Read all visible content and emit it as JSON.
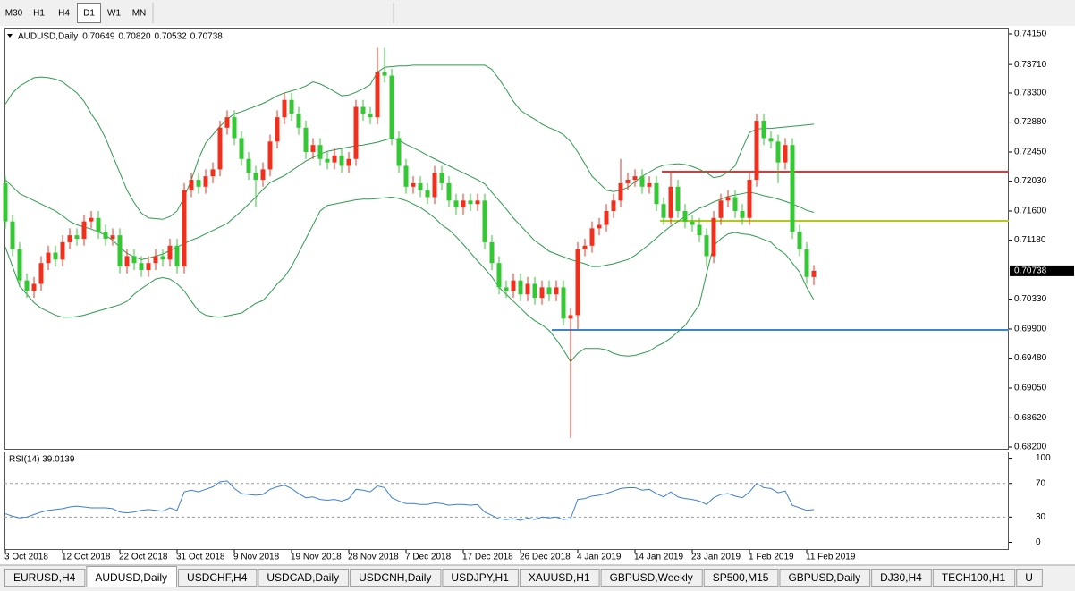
{
  "toolbar": {
    "timeframes": [
      "M30",
      "H1",
      "H4",
      "D1",
      "W1",
      "MN"
    ],
    "active": "D1"
  },
  "chart_data": [
    {
      "type": "candlestick",
      "title": "AUDUSD,Daily",
      "header_values": [
        "0.70649",
        "0.70820",
        "0.70532",
        "0.70738"
      ],
      "categories": [
        "3 Oct 2018",
        null,
        null,
        null,
        null,
        null,
        null,
        null,
        "12 Oct 2018",
        null,
        null,
        null,
        null,
        null,
        null,
        null,
        "22 Oct 2018",
        null,
        null,
        null,
        null,
        null,
        null,
        null,
        "31 Oct 2018",
        null,
        null,
        null,
        null,
        null,
        null,
        null,
        "9 Nov 2018",
        null,
        null,
        null,
        null,
        null,
        null,
        null,
        "19 Nov 2018",
        null,
        null,
        null,
        null,
        null,
        null,
        null,
        "28 Nov 2018",
        null,
        null,
        null,
        null,
        null,
        null,
        null,
        "7 Dec 2018",
        null,
        null,
        null,
        null,
        null,
        null,
        null,
        "17 Dec 2018",
        null,
        null,
        null,
        null,
        null,
        null,
        null,
        "26 Dec 2018",
        null,
        null,
        null,
        null,
        null,
        null,
        null,
        "4 Jan 2019",
        null,
        null,
        null,
        null,
        null,
        null,
        null,
        "14 Jan 2019",
        null,
        null,
        null,
        null,
        null,
        null,
        null,
        "23 Jan 2019",
        null,
        null,
        null,
        null,
        null,
        null,
        null,
        "1 Feb 2019",
        null,
        null,
        null,
        null,
        null,
        null,
        null,
        "11 Feb 2019",
        null
      ],
      "open": [
        0.72,
        0.7145,
        0.7105,
        0.706,
        0.7045,
        0.7055,
        0.7085,
        0.71,
        0.709,
        0.7115,
        0.7125,
        0.712,
        0.7145,
        0.715,
        0.713,
        0.712,
        0.7125,
        0.708,
        0.7095,
        0.7085,
        0.7075,
        0.7085,
        0.7095,
        0.709,
        0.711,
        0.708,
        0.719,
        0.7205,
        0.7195,
        0.721,
        0.722,
        0.728,
        0.7295,
        0.7265,
        0.7235,
        0.7215,
        0.7205,
        0.722,
        0.726,
        0.7295,
        0.732,
        0.73,
        0.728,
        0.7245,
        0.7255,
        0.7235,
        0.723,
        0.724,
        0.7225,
        0.7235,
        0.731,
        0.73,
        0.7295,
        0.736,
        0.7355,
        0.7265,
        0.7225,
        0.7195,
        0.72,
        0.719,
        0.718,
        0.7215,
        0.72,
        0.7175,
        0.7165,
        0.7175,
        0.717,
        0.7175,
        0.7115,
        0.7085,
        0.705,
        0.7045,
        0.706,
        0.704,
        0.7055,
        0.7035,
        0.705,
        0.704,
        0.705,
        0.7005,
        0.701,
        0.7105,
        0.711,
        0.7135,
        0.714,
        0.716,
        0.7175,
        0.72,
        0.7205,
        0.721,
        0.7195,
        0.72,
        0.717,
        0.715,
        0.7195,
        0.716,
        0.7145,
        0.714,
        0.7125,
        0.7095,
        0.715,
        0.7175,
        0.718,
        0.716,
        0.715,
        0.7205,
        0.729,
        0.7265,
        0.726,
        0.723,
        0.7255,
        0.713,
        0.7105,
        0.70649
      ],
      "high": [
        0.721,
        0.7155,
        0.7115,
        0.707,
        0.7065,
        0.7095,
        0.711,
        0.711,
        0.7125,
        0.7135,
        0.7135,
        0.7155,
        0.716,
        0.716,
        0.714,
        0.7135,
        0.7135,
        0.7105,
        0.7105,
        0.7095,
        0.7095,
        0.7105,
        0.7105,
        0.712,
        0.712,
        0.72,
        0.7215,
        0.7215,
        0.722,
        0.723,
        0.729,
        0.7305,
        0.7305,
        0.7275,
        0.7245,
        0.7225,
        0.723,
        0.727,
        0.7305,
        0.733,
        0.733,
        0.731,
        0.729,
        0.7265,
        0.7265,
        0.7245,
        0.725,
        0.725,
        0.7245,
        0.732,
        0.732,
        0.731,
        0.7395,
        0.7395,
        0.7365,
        0.7275,
        0.7235,
        0.721,
        0.721,
        0.72,
        0.7225,
        0.7225,
        0.721,
        0.7185,
        0.7185,
        0.7185,
        0.7185,
        0.7185,
        0.7125,
        0.7095,
        0.706,
        0.707,
        0.707,
        0.7065,
        0.7065,
        0.706,
        0.706,
        0.706,
        0.706,
        0.702,
        0.7115,
        0.712,
        0.7145,
        0.715,
        0.717,
        0.7185,
        0.7235,
        0.7215,
        0.722,
        0.722,
        0.721,
        0.721,
        0.718,
        0.7215,
        0.7205,
        0.717,
        0.7155,
        0.715,
        0.7135,
        0.716,
        0.7185,
        0.719,
        0.719,
        0.717,
        0.7215,
        0.73,
        0.73,
        0.7275,
        0.727,
        0.7265,
        0.7265,
        0.714,
        0.7115,
        0.7082
      ],
      "low": [
        0.7135,
        0.7095,
        0.705,
        0.7035,
        0.7035,
        0.7045,
        0.7075,
        0.708,
        0.708,
        0.7105,
        0.711,
        0.711,
        0.7135,
        0.712,
        0.711,
        0.711,
        0.707,
        0.707,
        0.7075,
        0.7065,
        0.7065,
        0.7075,
        0.708,
        0.708,
        0.707,
        0.707,
        0.718,
        0.7185,
        0.7185,
        0.72,
        0.721,
        0.727,
        0.7255,
        0.7225,
        0.7205,
        0.7165,
        0.7195,
        0.721,
        0.725,
        0.7285,
        0.729,
        0.727,
        0.7235,
        0.7235,
        0.7225,
        0.722,
        0.722,
        0.7215,
        0.7215,
        0.7225,
        0.729,
        0.7285,
        0.7285,
        0.7345,
        0.7255,
        0.7215,
        0.7185,
        0.7185,
        0.718,
        0.717,
        0.717,
        0.719,
        0.7165,
        0.7155,
        0.7155,
        0.716,
        0.716,
        0.7105,
        0.7075,
        0.704,
        0.7035,
        0.7035,
        0.703,
        0.703,
        0.7025,
        0.7025,
        0.703,
        0.703,
        0.6995,
        0.6833,
        0.699,
        0.7095,
        0.71,
        0.7125,
        0.713,
        0.715,
        0.7165,
        0.719,
        0.7195,
        0.7185,
        0.7185,
        0.716,
        0.714,
        0.714,
        0.715,
        0.7135,
        0.713,
        0.7115,
        0.708,
        0.7085,
        0.714,
        0.7165,
        0.715,
        0.714,
        0.714,
        0.7195,
        0.7255,
        0.725,
        0.72,
        0.722,
        0.712,
        0.7095,
        0.7055,
        0.70532
      ],
      "close": [
        0.7145,
        0.7105,
        0.706,
        0.7045,
        0.7055,
        0.7085,
        0.71,
        0.709,
        0.7115,
        0.7125,
        0.712,
        0.7145,
        0.715,
        0.713,
        0.712,
        0.7125,
        0.708,
        0.7095,
        0.7085,
        0.7075,
        0.7085,
        0.7095,
        0.709,
        0.711,
        0.708,
        0.719,
        0.7205,
        0.7195,
        0.721,
        0.722,
        0.728,
        0.7295,
        0.7265,
        0.7235,
        0.7215,
        0.7205,
        0.722,
        0.726,
        0.7295,
        0.732,
        0.73,
        0.728,
        0.7245,
        0.7255,
        0.7235,
        0.723,
        0.724,
        0.7225,
        0.7235,
        0.731,
        0.73,
        0.7295,
        0.736,
        0.7355,
        0.7265,
        0.7225,
        0.7195,
        0.72,
        0.719,
        0.718,
        0.7215,
        0.72,
        0.7175,
        0.7165,
        0.7175,
        0.717,
        0.7175,
        0.7115,
        0.7085,
        0.705,
        0.7045,
        0.706,
        0.704,
        0.7055,
        0.7035,
        0.705,
        0.704,
        0.705,
        0.7005,
        0.701,
        0.7105,
        0.711,
        0.7135,
        0.714,
        0.716,
        0.7175,
        0.72,
        0.7205,
        0.721,
        0.7195,
        0.72,
        0.717,
        0.715,
        0.7195,
        0.716,
        0.7145,
        0.714,
        0.7125,
        0.7095,
        0.715,
        0.7175,
        0.718,
        0.716,
        0.715,
        0.7205,
        0.729,
        0.7265,
        0.726,
        0.723,
        0.7255,
        0.713,
        0.7105,
        0.7065,
        0.70738
      ],
      "up_color": "#f0301c",
      "down_color": "#34c834",
      "overlays": [
        {
          "color": "#2e9a4e",
          "values": [
            0.7314,
            0.733,
            0.734,
            0.7346,
            0.7352,
            0.7353,
            0.7352,
            0.735,
            0.7346,
            0.7338,
            0.733,
            0.7318,
            0.73,
            0.7285,
            0.7265,
            0.724,
            0.7215,
            0.719,
            0.7172,
            0.7157,
            0.715,
            0.7149,
            0.7148,
            0.7152,
            0.716,
            0.718,
            0.7205,
            0.7235,
            0.7258,
            0.727,
            0.7282,
            0.7292,
            0.73,
            0.7303,
            0.7307,
            0.7311,
            0.7315,
            0.732,
            0.7326,
            0.733,
            0.7333,
            0.7336,
            0.734,
            0.7346,
            0.7343,
            0.7338,
            0.7332,
            0.7326,
            0.7327,
            0.7331,
            0.7336,
            0.7342,
            0.736,
            0.7367,
            0.7368,
            0.7369,
            0.7369,
            0.737,
            0.737,
            0.737,
            0.737,
            0.737,
            0.737,
            0.737,
            0.737,
            0.737,
            0.737,
            0.737,
            0.7364,
            0.735,
            0.7335,
            0.7318,
            0.7305,
            0.7298,
            0.7292,
            0.7285,
            0.728,
            0.7276,
            0.727,
            0.726,
            0.7245,
            0.7228,
            0.721,
            0.72,
            0.719,
            0.7188,
            0.719,
            0.7194,
            0.7202,
            0.721,
            0.7216,
            0.7222,
            0.7226,
            0.7227,
            0.7228,
            0.7227,
            0.7224,
            0.722,
            0.7215,
            0.7208,
            0.721,
            0.7216,
            0.7225,
            0.725,
            0.7273,
            0.7278,
            0.7279,
            0.7279,
            0.728,
            0.7281,
            0.7282,
            0.7283,
            0.7284,
            0.7285
          ]
        },
        {
          "color": "#2e9a4e",
          "values": [
            0.7205,
            0.7195,
            0.7185,
            0.718,
            0.7175,
            0.717,
            0.7165,
            0.716,
            0.7153,
            0.7145,
            0.714,
            0.7137,
            0.7134,
            0.713,
            0.7125,
            0.7118,
            0.7108,
            0.7099,
            0.7094,
            0.709,
            0.7092,
            0.7095,
            0.7098,
            0.7103,
            0.7108,
            0.7113,
            0.7118,
            0.7122,
            0.7127,
            0.7132,
            0.7137,
            0.7142,
            0.7151,
            0.716,
            0.717,
            0.718,
            0.7191,
            0.7201,
            0.7206,
            0.7211,
            0.7218,
            0.7225,
            0.7232,
            0.7237,
            0.7242,
            0.7246,
            0.7248,
            0.725,
            0.7252,
            0.7254,
            0.7255,
            0.7257,
            0.7259,
            0.7262,
            0.7265,
            0.7262,
            0.7256,
            0.7251,
            0.7246,
            0.724,
            0.7235,
            0.723,
            0.7225,
            0.722,
            0.7215,
            0.721,
            0.7205,
            0.7199,
            0.7187,
            0.7175,
            0.7163,
            0.715,
            0.7139,
            0.7128,
            0.7117,
            0.711,
            0.7102,
            0.7098,
            0.7094,
            0.709,
            0.7087,
            0.7084,
            0.708,
            0.708,
            0.7082,
            0.7084,
            0.7087,
            0.709,
            0.7096,
            0.7104,
            0.7112,
            0.7121,
            0.713,
            0.7138,
            0.7145,
            0.7152,
            0.7158,
            0.7164,
            0.7168,
            0.7173,
            0.7177,
            0.7181,
            0.7183,
            0.7185,
            0.7187,
            0.7185,
            0.7182,
            0.718,
            0.7177,
            0.7174,
            0.717,
            0.7166,
            0.7161,
            0.7158
          ]
        },
        {
          "color": "#2e9a4e",
          "values": [
            0.7108,
            0.708,
            0.7052,
            0.704,
            0.7028,
            0.702,
            0.7015,
            0.701,
            0.7007,
            0.7007,
            0.7008,
            0.701,
            0.7013,
            0.7016,
            0.7019,
            0.7022,
            0.7025,
            0.703,
            0.704,
            0.7048,
            0.7055,
            0.7062,
            0.7064,
            0.7062,
            0.7055,
            0.7045,
            0.703,
            0.7016,
            0.701,
            0.7008,
            0.7007,
            0.7009,
            0.7011,
            0.7013,
            0.702,
            0.7027,
            0.7031,
            0.7042,
            0.7055,
            0.7065,
            0.708,
            0.71,
            0.712,
            0.714,
            0.716,
            0.7168,
            0.717,
            0.7172,
            0.7174,
            0.7176,
            0.7177,
            0.7177,
            0.7178,
            0.7179,
            0.718,
            0.7178,
            0.7175,
            0.717,
            0.7165,
            0.7158,
            0.715,
            0.714,
            0.7133,
            0.7123,
            0.7112,
            0.71,
            0.7088,
            0.7077,
            0.7065,
            0.705,
            0.704,
            0.703,
            0.702,
            0.701,
            0.7002,
            0.6996,
            0.6988,
            0.6975,
            0.696,
            0.6943,
            0.6955,
            0.6962,
            0.6962,
            0.6962,
            0.696,
            0.6955,
            0.6952,
            0.6951,
            0.6952,
            0.6955,
            0.6958,
            0.6965,
            0.697,
            0.6977,
            0.6986,
            0.6995,
            0.701,
            0.7025,
            0.707,
            0.711,
            0.712,
            0.7127,
            0.7129,
            0.7127,
            0.7126,
            0.7123,
            0.7119,
            0.7115,
            0.7105,
            0.7098,
            0.7085,
            0.7072,
            0.705,
            0.7032
          ]
        }
      ],
      "hlines": [
        {
          "value": 0.72167,
          "color": "#ff2a2a"
        },
        {
          "value": 0.71458,
          "color": "#b3c81a"
        },
        {
          "value": 0.69887,
          "color": "#3a86c8"
        }
      ],
      "price_label": {
        "value": 0.70738,
        "label": "0.70738"
      },
      "ylim": [
        0.68174,
        0.74227
      ],
      "yticks": [
        {
          "value": 0.7415,
          "label": "0.74150"
        },
        {
          "value": 0.7371,
          "label": "0.73710"
        },
        {
          "value": 0.733,
          "label": "0.73300"
        },
        {
          "value": 0.7288,
          "label": "0.72880"
        },
        {
          "value": 0.7245,
          "label": "0.72450"
        },
        {
          "value": 0.7203,
          "label": "0.72030"
        },
        {
          "value": 0.716,
          "label": "0.71600"
        },
        {
          "value": 0.7118,
          "label": "0.71180"
        },
        {
          "value": 0.7033,
          "label": "0.70330"
        },
        {
          "value": 0.699,
          "label": "0.69900"
        },
        {
          "value": 0.6948,
          "label": "0.69480"
        },
        {
          "value": 0.6905,
          "label": "0.69050"
        },
        {
          "value": 0.6862,
          "label": "0.68620"
        },
        {
          "value": 0.682,
          "label": "0.68200"
        }
      ]
    },
    {
      "type": "line",
      "title": "RSI(14) 39.0139",
      "color": "#3a7fd5",
      "values": [
        34,
        31,
        29,
        30,
        33,
        36,
        38,
        39,
        40,
        42,
        43,
        42,
        41,
        41,
        41,
        40,
        36,
        35,
        36,
        38,
        39,
        38,
        37,
        41,
        38,
        60,
        62,
        60,
        63,
        66,
        72,
        73,
        64,
        58,
        57,
        56,
        57,
        63,
        66,
        68,
        64,
        58,
        53,
        54,
        51,
        50,
        51,
        49,
        52,
        63,
        62,
        60,
        67,
        65,
        53,
        49,
        46,
        46,
        45,
        45,
        47,
        46,
        44,
        45,
        45,
        44,
        45,
        36,
        32,
        28,
        27,
        28,
        26,
        29,
        27,
        30,
        29,
        30,
        27,
        28,
        51,
        52,
        55,
        56,
        58,
        61,
        64,
        65,
        65,
        62,
        63,
        58,
        54,
        60,
        54,
        52,
        51,
        49,
        45,
        53,
        57,
        58,
        55,
        53,
        60,
        70,
        65,
        64,
        59,
        61,
        44,
        41,
        38,
        39.0139
      ],
      "ylim": [
        -8,
        107
      ],
      "yticks": [
        0,
        30,
        70,
        100
      ],
      "levels": [
        30,
        70
      ]
    }
  ],
  "tabs": {
    "items": [
      "EURUSD,H4",
      "AUDUSD,Daily",
      "USDCHF,H4",
      "USDCAD,Daily",
      "USDCNH,Daily",
      "USDJPY,H1",
      "XAUUSD,H1",
      "GBPUSD,Weekly",
      "SP500,M15",
      "GBPUSD,Daily",
      "DJ30,H4",
      "TECH100,H1",
      "U"
    ],
    "active": "AUDUSD,Daily"
  }
}
